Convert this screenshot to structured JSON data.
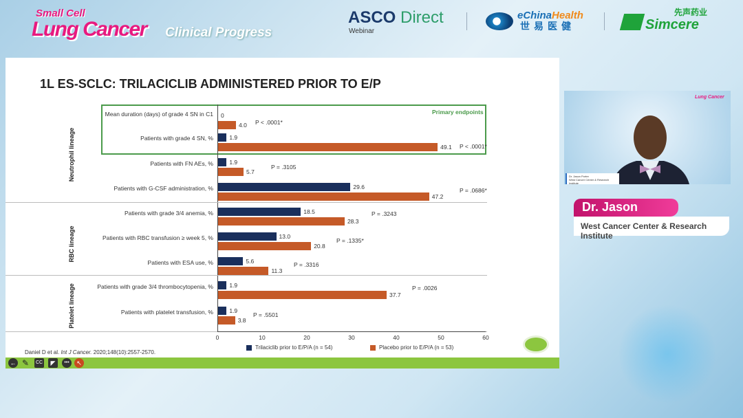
{
  "header": {
    "brand_line1": "Small Cell",
    "brand_line2": "Lung Cancer",
    "brand_line3": "Clinical Progress",
    "asco": "ASCO",
    "asco_direct": "Direct",
    "asco_sub": "Webinar",
    "echina_a": "eChina",
    "echina_b": "Health",
    "echina_cn": "世易医健",
    "simcere_cn": "先声药业",
    "simcere": "Simcere"
  },
  "slide": {
    "title": "1L ES-SCLC: TRILACICLIB ADMINISTERED PRIOR TO E/P",
    "citation_prefix": "Daniel D et al. ",
    "citation_journal": "Int J Cancer.",
    "citation_suffix": " 2020;148(10):2557-2570.",
    "primary_label": "Primary endpoints"
  },
  "chart_data": {
    "type": "bar",
    "orientation": "horizontal",
    "xlim": [
      0,
      60
    ],
    "xticks": [
      "0",
      "10",
      "20",
      "30",
      "40",
      "50",
      "60"
    ],
    "groups": [
      "Neutrophil lineage",
      "RBC lineage",
      "Platelet lineage"
    ],
    "categories": [
      "Mean duration (days) of grade 4 SN in C1",
      "Patients with grade 4 SN, %",
      "Patients with FN AEs, %",
      "Patients with G-CSF administration, %",
      "Patients with grade 3/4 anemia, %",
      "Patients with RBC transfusion ≥ week 5, %",
      "Patients with ESA use, %",
      "Patients with grade 3/4 thrombocytopenia, %",
      "Patients with platelet transfusion, %"
    ],
    "series": [
      {
        "name": "Trilaciclib prior to E/P/A (n = 54)",
        "color": "#1a2f5c",
        "values": [
          0,
          1.9,
          1.9,
          29.6,
          18.5,
          13.0,
          5.6,
          1.9,
          1.9
        ],
        "labels": [
          "0",
          "1.9",
          "1.9",
          "29.6",
          "18.5",
          "13.0",
          "5.6",
          "1.9",
          "1.9"
        ]
      },
      {
        "name": "Placebo prior to E/P/A (n = 53)",
        "color": "#c55a28",
        "values": [
          4.0,
          49.1,
          5.7,
          47.2,
          28.3,
          20.8,
          11.3,
          37.7,
          3.8
        ],
        "labels": [
          "4.0",
          "49.1",
          "5.7",
          "47.2",
          "28.3",
          "20.8",
          "11.3",
          "37.7",
          "3.8"
        ]
      }
    ],
    "p_values": [
      "P < .0001*",
      "P < .0001*",
      "P = .3105",
      "P = .0686*",
      "P = .3243",
      "P = .1335*",
      "P = .3316",
      "P = .0026",
      "P = .5501"
    ]
  },
  "toolbar": {
    "icons": [
      "back-icon",
      "pen-icon",
      "cc-icon",
      "video-off-icon",
      "more-icon",
      "pointer-icon"
    ],
    "cc": "CC",
    "more": "•••"
  },
  "speaker": {
    "name": "Dr. Jason Porter",
    "institution": "West Cancer Center & Research Institute",
    "video_caption_name": "Dr. Jason Porter",
    "video_caption_inst": "West Cancer Center & Research Institute",
    "video_mini_brand": "Lung Cancer"
  }
}
